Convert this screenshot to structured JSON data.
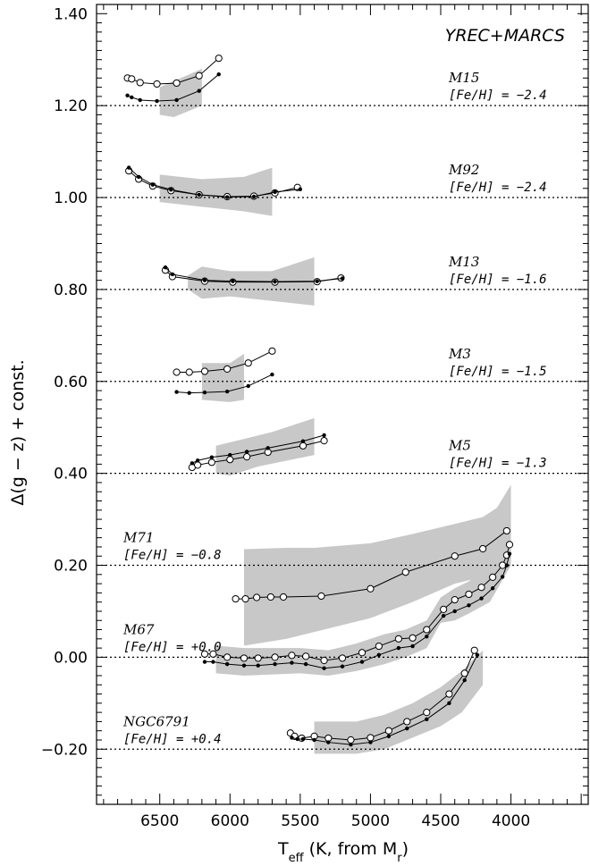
{
  "chart_data": {
    "type": "line",
    "model_label": "YREC+MARCS",
    "xlabel": {
      "pre": "T",
      "sub1": "eff",
      "mid": " (K, from M",
      "sub2": "r",
      "post": ")"
    },
    "ylabel": "Δ(g − z) + const.",
    "xlim": [
      6950,
      3450
    ],
    "ylim": [
      -0.32,
      1.42
    ],
    "xticks": [
      6500,
      6000,
      5500,
      5000,
      4500,
      4000
    ],
    "xtick_labels": [
      "6500",
      "6000",
      "5500",
      "5000",
      "4500",
      "4000"
    ],
    "yticks": [
      1.4,
      1.2,
      1.0,
      0.8,
      0.6,
      0.4,
      0.2,
      0.0,
      -0.2
    ],
    "ytick_labels": [
      "1.40",
      "1.20",
      "1.00",
      "0.80",
      "0.60",
      "0.40",
      "0.20",
      "0.00",
      "−0.20"
    ],
    "colors": {
      "band": "#c8c8c8",
      "line": "#000000"
    },
    "clusters": [
      {
        "name": "M15",
        "feh": "[Fe/H] = −2.4",
        "ref": 1.2,
        "label_side": "right",
        "band_upper": [
          [
            6500,
            1.24
          ],
          [
            6200,
            1.28
          ],
          [
            6200,
            1.32
          ]
        ],
        "band_lower": [
          [
            6500,
            1.18
          ],
          [
            6400,
            1.175
          ],
          [
            6200,
            1.2
          ]
        ],
        "open": [
          [
            6730,
            1.26
          ],
          [
            6700,
            1.258
          ],
          [
            6640,
            1.25
          ],
          [
            6520,
            1.247
          ],
          [
            6380,
            1.249
          ],
          [
            6220,
            1.265
          ],
          [
            6080,
            1.303
          ]
        ],
        "filled": [
          [
            6730,
            1.222
          ],
          [
            6700,
            1.218
          ],
          [
            6640,
            1.212
          ],
          [
            6520,
            1.21
          ],
          [
            6380,
            1.212
          ],
          [
            6220,
            1.232
          ],
          [
            6080,
            1.268
          ]
        ]
      },
      {
        "name": "M92",
        "feh": "[Fe/H] = −2.4",
        "ref": 1.0,
        "label_side": "right",
        "band_upper": [
          [
            6500,
            1.05
          ],
          [
            6200,
            1.04
          ],
          [
            5900,
            1.045
          ],
          [
            5700,
            1.065
          ]
        ],
        "band_lower": [
          [
            6500,
            0.99
          ],
          [
            6200,
            0.98
          ],
          [
            5900,
            0.97
          ],
          [
            5700,
            0.96
          ]
        ],
        "open": [
          [
            6720,
            1.058
          ],
          [
            6650,
            1.04
          ],
          [
            6550,
            1.025
          ],
          [
            6420,
            1.015
          ],
          [
            6220,
            1.006
          ],
          [
            6020,
            1.002
          ],
          [
            5830,
            1.003
          ],
          [
            5680,
            1.01
          ],
          [
            5520,
            1.022
          ]
        ],
        "filled": [
          [
            6720,
            1.065
          ],
          [
            6650,
            1.045
          ],
          [
            6550,
            1.028
          ],
          [
            6420,
            1.017
          ],
          [
            6220,
            1.006
          ],
          [
            6020,
            1.001
          ],
          [
            5830,
            1.002
          ],
          [
            5680,
            1.012
          ],
          [
            5500,
            1.018
          ]
        ]
      },
      {
        "name": "M13",
        "feh": "[Fe/H] = −1.6",
        "ref": 0.8,
        "label_side": "right",
        "band_upper": [
          [
            6300,
            0.83
          ],
          [
            6200,
            0.85
          ],
          [
            6000,
            0.84
          ],
          [
            5700,
            0.84
          ],
          [
            5400,
            0.87
          ]
        ],
        "band_lower": [
          [
            6300,
            0.8
          ],
          [
            6200,
            0.78
          ],
          [
            6000,
            0.785
          ],
          [
            5700,
            0.775
          ],
          [
            5400,
            0.765
          ]
        ],
        "open": [
          [
            6460,
            0.842
          ],
          [
            6410,
            0.828
          ],
          [
            6180,
            0.818
          ],
          [
            5980,
            0.816
          ],
          [
            5680,
            0.816
          ],
          [
            5380,
            0.817
          ],
          [
            5210,
            0.825
          ]
        ],
        "filled": [
          [
            6460,
            0.848
          ],
          [
            6410,
            0.833
          ],
          [
            6180,
            0.82
          ],
          [
            5980,
            0.818
          ],
          [
            5680,
            0.817
          ],
          [
            5380,
            0.818
          ],
          [
            5200,
            0.824
          ]
        ]
      },
      {
        "name": "M3",
        "feh": "[Fe/H] = −1.5",
        "ref": 0.6,
        "label_side": "right",
        "band_upper": [
          [
            6200,
            0.64
          ],
          [
            6000,
            0.64
          ],
          [
            5900,
            0.66
          ]
        ],
        "band_lower": [
          [
            6200,
            0.56
          ],
          [
            6000,
            0.555
          ],
          [
            5900,
            0.56
          ]
        ],
        "open": [
          [
            6380,
            0.62
          ],
          [
            6290,
            0.62
          ],
          [
            6180,
            0.622
          ],
          [
            6020,
            0.627
          ],
          [
            5870,
            0.64
          ],
          [
            5700,
            0.666
          ]
        ],
        "filled": [
          [
            6380,
            0.577
          ],
          [
            6290,
            0.575
          ],
          [
            6180,
            0.576
          ],
          [
            6020,
            0.578
          ],
          [
            5870,
            0.59
          ],
          [
            5700,
            0.615
          ]
        ]
      },
      {
        "name": "M5",
        "feh": "[Fe/H] = −1.3",
        "ref": 0.4,
        "label_side": "right",
        "band_upper": [
          [
            6100,
            0.46
          ],
          [
            5900,
            0.475
          ],
          [
            5700,
            0.49
          ],
          [
            5400,
            0.52
          ]
        ],
        "band_lower": [
          [
            6100,
            0.4
          ],
          [
            6000,
            0.395
          ],
          [
            5800,
            0.415
          ],
          [
            5400,
            0.44
          ]
        ],
        "open": [
          [
            6270,
            0.413
          ],
          [
            6230,
            0.418
          ],
          [
            6130,
            0.424
          ],
          [
            6000,
            0.43
          ],
          [
            5880,
            0.436
          ],
          [
            5730,
            0.446
          ],
          [
            5480,
            0.46
          ],
          [
            5330,
            0.471
          ]
        ],
        "filled": [
          [
            6270,
            0.422
          ],
          [
            6230,
            0.428
          ],
          [
            6130,
            0.435
          ],
          [
            6000,
            0.44
          ],
          [
            5880,
            0.447
          ],
          [
            5730,
            0.455
          ],
          [
            5480,
            0.47
          ],
          [
            5330,
            0.483
          ]
        ]
      },
      {
        "name": "M71",
        "feh": "[Fe/H] = −0.8",
        "ref": 0.2,
        "label_side": "left",
        "band_upper": [
          [
            5900,
            0.235
          ],
          [
            5600,
            0.238
          ],
          [
            5400,
            0.238
          ],
          [
            5000,
            0.248
          ],
          [
            4700,
            0.268
          ],
          [
            4400,
            0.29
          ],
          [
            4200,
            0.305
          ],
          [
            4100,
            0.325
          ],
          [
            4000,
            0.375
          ]
        ],
        "band_lower": [
          [
            5900,
            0.025
          ],
          [
            5600,
            0.04
          ],
          [
            5400,
            0.055
          ],
          [
            5000,
            0.085
          ],
          [
            4700,
            0.12
          ],
          [
            4400,
            0.16
          ],
          [
            4200,
            0.175
          ],
          [
            4100,
            0.19
          ],
          [
            4000,
            0.215
          ]
        ],
        "open": [
          [
            5960,
            0.127
          ],
          [
            5890,
            0.127
          ],
          [
            5810,
            0.13
          ],
          [
            5710,
            0.131
          ],
          [
            5620,
            0.131
          ],
          [
            5350,
            0.133
          ],
          [
            5000,
            0.149
          ],
          [
            4750,
            0.185
          ],
          [
            4400,
            0.22
          ],
          [
            4200,
            0.236
          ],
          [
            4030,
            0.275
          ]
        ]
      },
      {
        "name": "M67",
        "feh": "[Fe/H] = +0.0",
        "ref": 0.0,
        "label_side": "left",
        "band_upper": [
          [
            6100,
            0.025
          ],
          [
            5900,
            0.02
          ],
          [
            5500,
            0.02
          ],
          [
            5300,
            0.015
          ],
          [
            5100,
            0.03
          ],
          [
            4900,
            0.05
          ],
          [
            4750,
            0.06
          ],
          [
            4600,
            0.08
          ],
          [
            4500,
            0.13
          ],
          [
            4400,
            0.15
          ],
          [
            4300,
            0.165
          ],
          [
            4150,
            0.2
          ],
          [
            4000,
            0.255
          ]
        ],
        "band_lower": [
          [
            6100,
            -0.035
          ],
          [
            5900,
            -0.04
          ],
          [
            5500,
            -0.035
          ],
          [
            5300,
            -0.04
          ],
          [
            5100,
            -0.03
          ],
          [
            4900,
            -0.015
          ],
          [
            4750,
            0.0
          ],
          [
            4600,
            0.02
          ],
          [
            4500,
            0.075
          ],
          [
            4400,
            0.08
          ],
          [
            4300,
            0.095
          ],
          [
            4150,
            0.12
          ],
          [
            4000,
            0.2
          ]
        ],
        "open": [
          [
            6180,
            0.007
          ],
          [
            6120,
            0.007
          ],
          [
            6020,
            0.0
          ],
          [
            5900,
            -0.002
          ],
          [
            5800,
            -0.002
          ],
          [
            5680,
            0.0
          ],
          [
            5560,
            0.004
          ],
          [
            5460,
            0.002
          ],
          [
            5330,
            -0.007
          ],
          [
            5200,
            -0.002
          ],
          [
            5060,
            0.01
          ],
          [
            4940,
            0.024
          ],
          [
            4800,
            0.04
          ],
          [
            4700,
            0.042
          ],
          [
            4600,
            0.06
          ],
          [
            4480,
            0.104
          ],
          [
            4400,
            0.125
          ],
          [
            4300,
            0.137
          ],
          [
            4210,
            0.152
          ],
          [
            4130,
            0.174
          ],
          [
            4060,
            0.2
          ],
          [
            4030,
            0.222
          ],
          [
            4010,
            0.245
          ]
        ],
        "filled": [
          [
            6180,
            -0.01
          ],
          [
            6120,
            -0.01
          ],
          [
            6020,
            -0.015
          ],
          [
            5900,
            -0.018
          ],
          [
            5800,
            -0.018
          ],
          [
            5680,
            -0.015
          ],
          [
            5560,
            -0.012
          ],
          [
            5460,
            -0.015
          ],
          [
            5330,
            -0.024
          ],
          [
            5200,
            -0.02
          ],
          [
            5060,
            -0.01
          ],
          [
            4940,
            0.005
          ],
          [
            4800,
            0.02
          ],
          [
            4700,
            0.024
          ],
          [
            4600,
            0.045
          ],
          [
            4480,
            0.09
          ],
          [
            4400,
            0.1
          ],
          [
            4300,
            0.113
          ],
          [
            4210,
            0.128
          ],
          [
            4130,
            0.15
          ],
          [
            4060,
            0.175
          ],
          [
            4030,
            0.2
          ],
          [
            4010,
            0.225
          ]
        ]
      },
      {
        "name": "NGC6791",
        "feh": "[Fe/H] = +0.4",
        "ref": -0.2,
        "label_side": "left",
        "band_upper": [
          [
            5400,
            -0.14
          ],
          [
            5100,
            -0.14
          ],
          [
            4900,
            -0.125
          ],
          [
            4700,
            -0.1
          ],
          [
            4500,
            -0.065
          ],
          [
            4350,
            -0.03
          ],
          [
            4200,
            0.015
          ]
        ],
        "band_lower": [
          [
            5400,
            -0.21
          ],
          [
            5100,
            -0.21
          ],
          [
            4900,
            -0.2
          ],
          [
            4700,
            -0.175
          ],
          [
            4500,
            -0.15
          ],
          [
            4350,
            -0.12
          ],
          [
            4200,
            -0.06
          ]
        ],
        "open": [
          [
            5570,
            -0.165
          ],
          [
            5540,
            -0.172
          ],
          [
            5490,
            -0.176
          ],
          [
            5400,
            -0.172
          ],
          [
            5300,
            -0.176
          ],
          [
            5140,
            -0.18
          ],
          [
            5000,
            -0.175
          ],
          [
            4870,
            -0.16
          ],
          [
            4740,
            -0.14
          ],
          [
            4600,
            -0.12
          ],
          [
            4440,
            -0.08
          ],
          [
            4330,
            -0.035
          ],
          [
            4260,
            0.015
          ]
        ],
        "filled": [
          [
            5560,
            -0.175
          ],
          [
            5520,
            -0.178
          ],
          [
            5480,
            -0.178
          ],
          [
            5400,
            -0.18
          ],
          [
            5300,
            -0.185
          ],
          [
            5140,
            -0.19
          ],
          [
            5000,
            -0.185
          ],
          [
            4870,
            -0.172
          ],
          [
            4740,
            -0.155
          ],
          [
            4600,
            -0.135
          ],
          [
            4440,
            -0.1
          ],
          [
            4330,
            -0.05
          ],
          [
            4240,
            0.005
          ]
        ]
      }
    ]
  }
}
